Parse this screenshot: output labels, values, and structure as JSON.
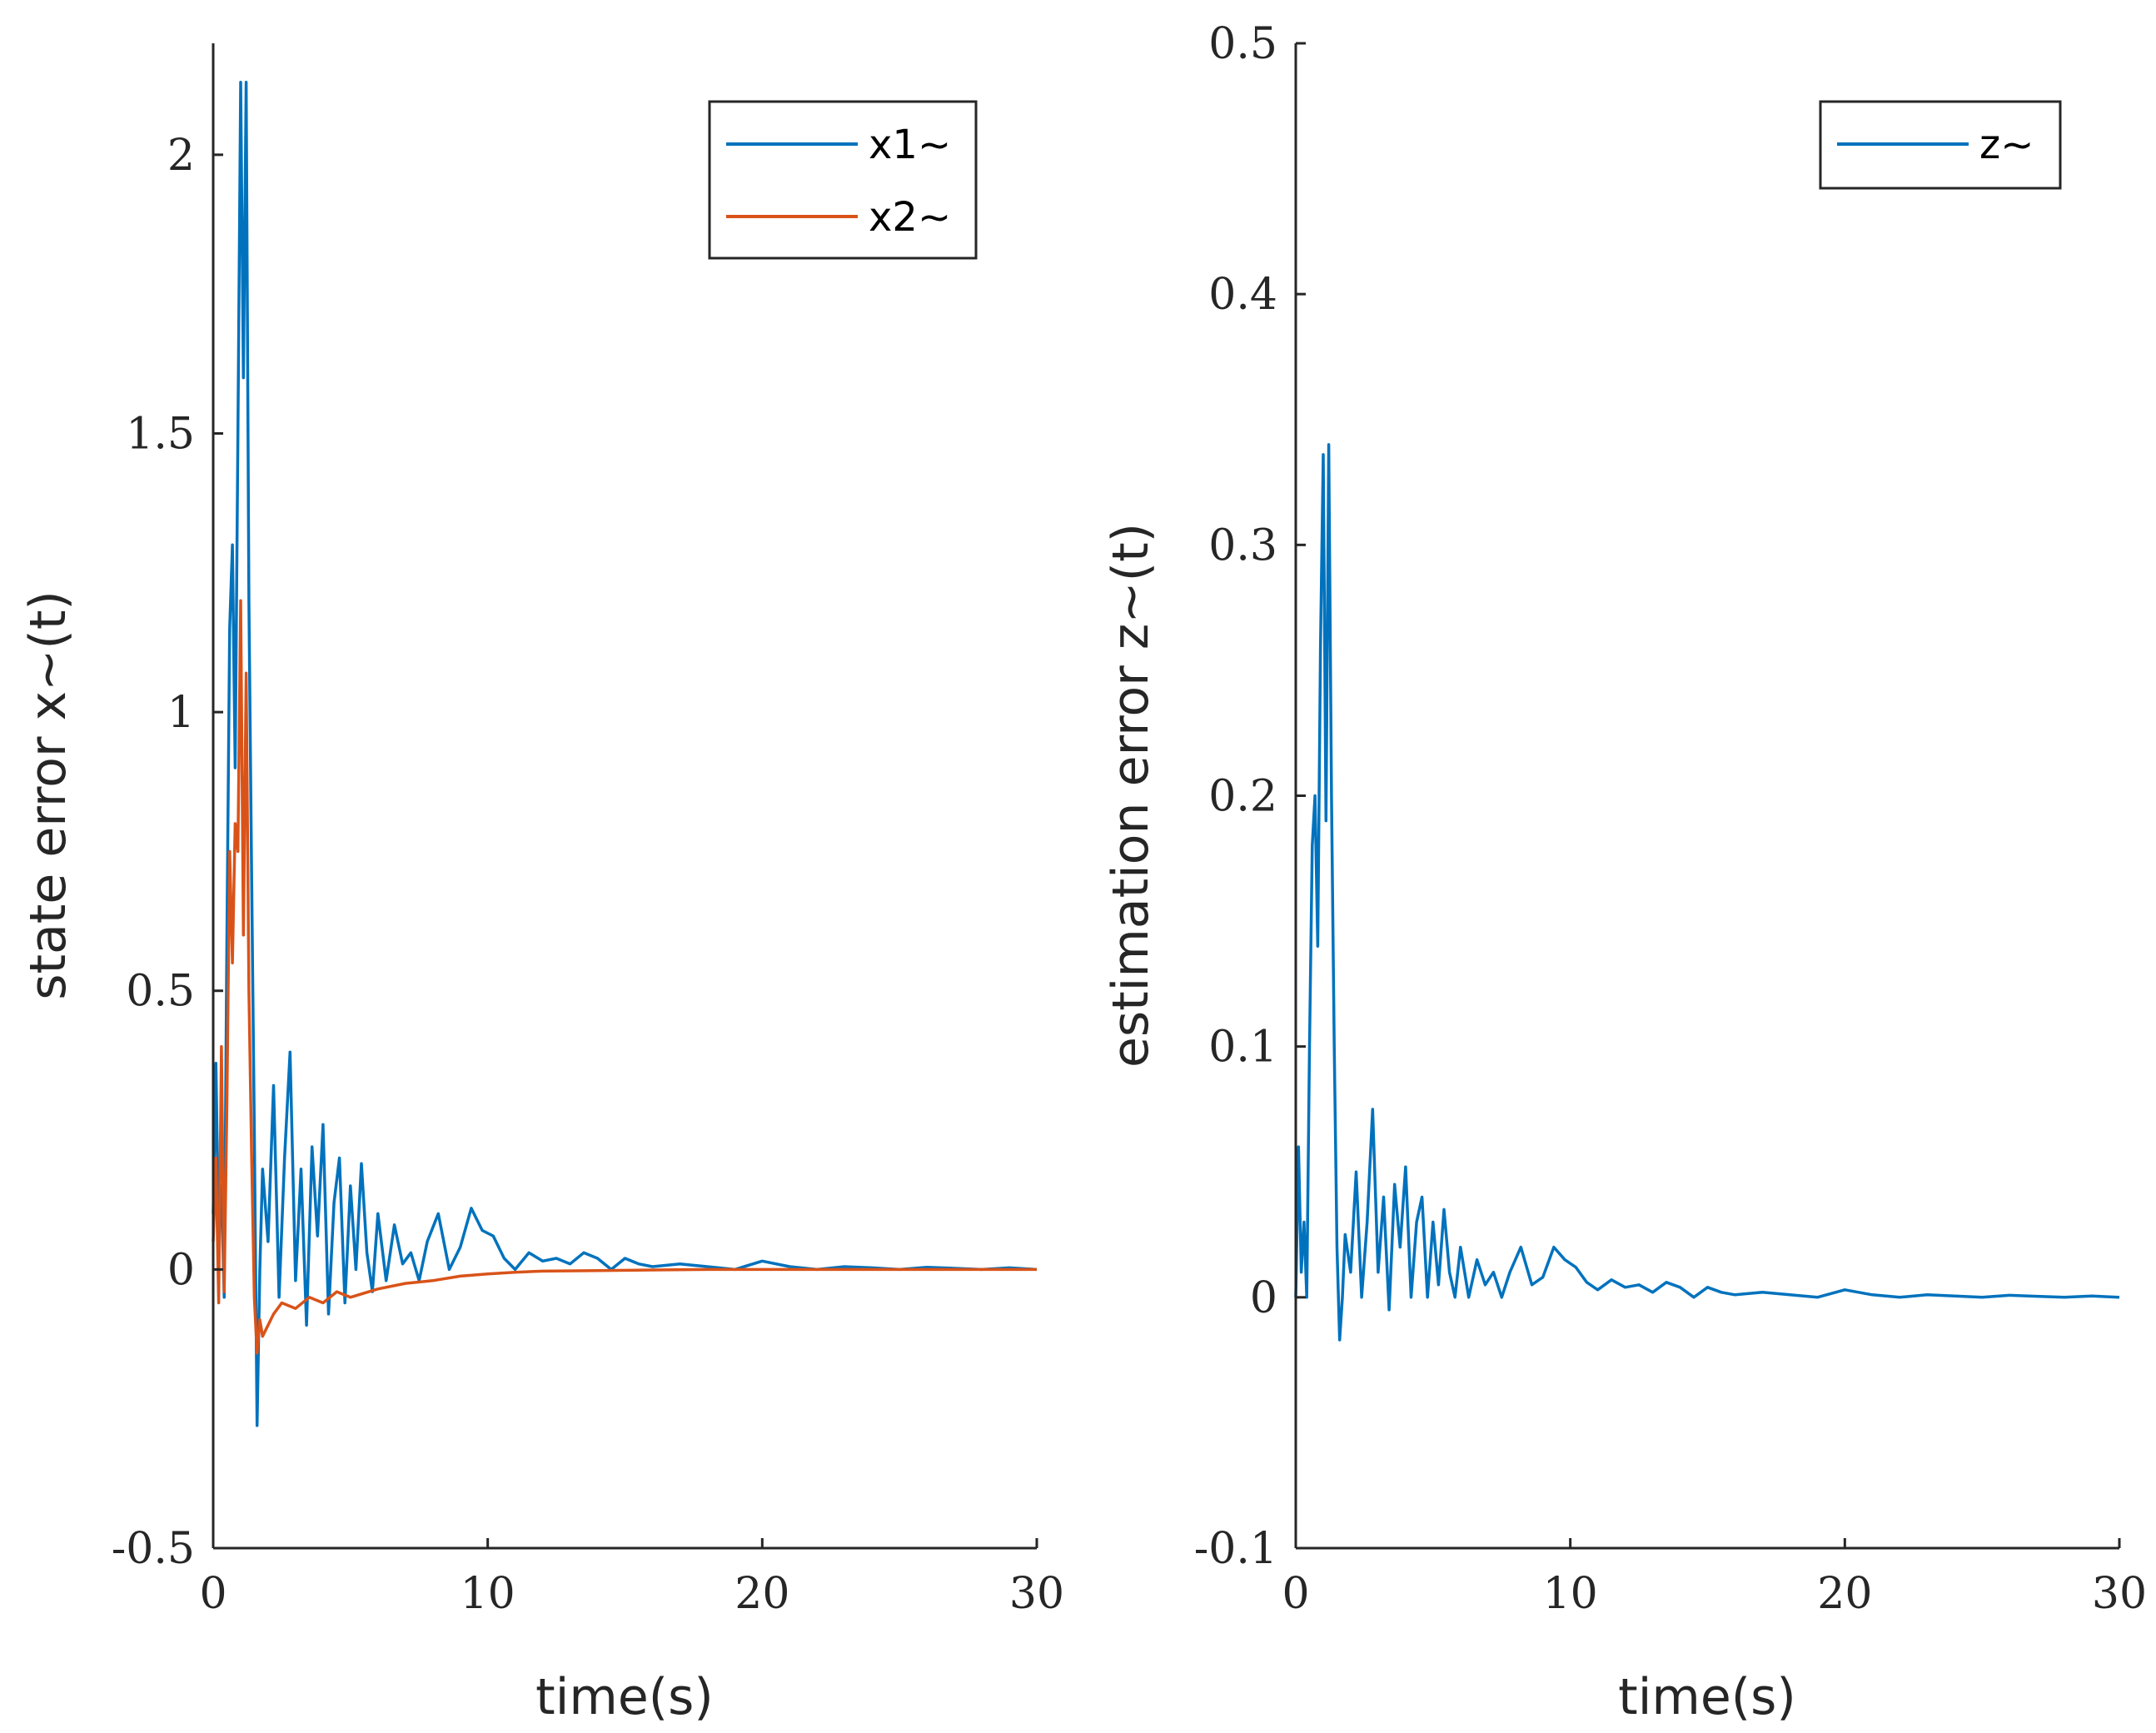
{
  "chart_data": [
    {
      "type": "line",
      "id": "left",
      "title": "",
      "xlabel": "time(s)",
      "ylabel": "state error x~(t)",
      "xlim": [
        0,
        30
      ],
      "ylim": [
        -0.5,
        2.2
      ],
      "xticks": [
        0,
        10,
        20,
        30
      ],
      "xtick_labels": [
        "0",
        "10",
        "20",
        "30"
      ],
      "yticks": [
        -0.5,
        0,
        0.5,
        1,
        1.5,
        2
      ],
      "ytick_labels": [
        "-0.5",
        "0",
        "0.5",
        "1",
        "1.5",
        "2"
      ],
      "grid": false,
      "legend_position": "top-right",
      "series": [
        {
          "name": "x1~",
          "color": "#0072BD",
          "x": [
            0,
            0.1,
            0.2,
            0.3,
            0.4,
            0.5,
            0.6,
            0.7,
            0.8,
            0.9,
            1.0,
            1.1,
            1.2,
            1.3,
            1.4,
            1.5,
            1.6,
            1.7,
            1.8,
            2.0,
            2.2,
            2.4,
            2.6,
            2.8,
            3.0,
            3.2,
            3.4,
            3.6,
            3.8,
            4.0,
            4.2,
            4.4,
            4.6,
            4.8,
            5.0,
            5.2,
            5.4,
            5.6,
            5.8,
            6.0,
            6.3,
            6.6,
            6.9,
            7.2,
            7.5,
            7.8,
            8.2,
            8.6,
            9.0,
            9.4,
            9.8,
            10.2,
            10.6,
            11.0,
            11.5,
            12.0,
            12.5,
            13.0,
            13.5,
            14.0,
            14.5,
            15.0,
            15.5,
            16.0,
            17,
            18,
            19,
            20,
            21,
            22,
            23,
            24,
            25,
            26,
            27,
            28,
            29,
            30
          ],
          "y": [
            0.1,
            0.37,
            0.05,
            0.15,
            -0.05,
            0.6,
            1.15,
            1.3,
            0.9,
            1.5,
            2.13,
            1.6,
            2.13,
            1.2,
            0.7,
            0.25,
            -0.28,
            0.0,
            0.18,
            0.05,
            0.33,
            -0.05,
            0.2,
            0.39,
            -0.02,
            0.18,
            -0.1,
            0.22,
            0.06,
            0.26,
            -0.08,
            0.12,
            0.2,
            -0.06,
            0.15,
            0.0,
            0.19,
            0.03,
            -0.04,
            0.1,
            -0.02,
            0.08,
            0.01,
            0.03,
            -0.02,
            0.05,
            0.1,
            0.0,
            0.04,
            0.11,
            0.07,
            0.06,
            0.02,
            0.0,
            0.03,
            0.015,
            0.02,
            0.01,
            0.03,
            0.02,
            0.0,
            0.02,
            0.01,
            0.005,
            0.01,
            0.005,
            0.0,
            0.015,
            0.005,
            0.0,
            0.005,
            0.003,
            0.0,
            0.004,
            0.002,
            0.0,
            0.003,
            0.0
          ]
        },
        {
          "name": "x2~",
          "color": "#D95319",
          "x": [
            0,
            0.1,
            0.2,
            0.3,
            0.4,
            0.5,
            0.6,
            0.7,
            0.8,
            0.9,
            1.0,
            1.1,
            1.2,
            1.3,
            1.4,
            1.5,
            1.6,
            1.7,
            1.8,
            2.0,
            2.2,
            2.5,
            3.0,
            3.5,
            4.0,
            4.5,
            5.0,
            6.0,
            7.0,
            8.0,
            9.0,
            10.0,
            11.0,
            12.0,
            14.0,
            16.0,
            18.0,
            20.0,
            25.0,
            30.0
          ],
          "y": [
            0.05,
            0.2,
            -0.06,
            0.4,
            -0.04,
            0.3,
            0.75,
            0.55,
            0.8,
            0.75,
            1.2,
            0.6,
            1.07,
            0.5,
            0.2,
            -0.05,
            -0.15,
            -0.09,
            -0.12,
            -0.1,
            -0.08,
            -0.06,
            -0.07,
            -0.05,
            -0.06,
            -0.04,
            -0.05,
            -0.035,
            -0.025,
            -0.02,
            -0.012,
            -0.008,
            -0.005,
            -0.003,
            -0.002,
            -0.001,
            0.0,
            0.0,
            0.0,
            0.0
          ]
        }
      ]
    },
    {
      "type": "line",
      "id": "right",
      "title": "",
      "xlabel": "time(s)",
      "ylabel": "estimation error z~(t)",
      "xlim": [
        0,
        30
      ],
      "ylim": [
        -0.1,
        0.5
      ],
      "xticks": [
        0,
        10,
        20,
        30
      ],
      "xtick_labels": [
        "0",
        "10",
        "20",
        "30"
      ],
      "yticks": [
        -0.1,
        0,
        0.1,
        0.2,
        0.3,
        0.4,
        0.5
      ],
      "ytick_labels": [
        "-0.1",
        "0",
        "0.1",
        "0.2",
        "0.3",
        "0.4",
        "0.5"
      ],
      "grid": false,
      "legend_position": "top-right",
      "series": [
        {
          "name": "z~",
          "color": "#0072BD",
          "x": [
            0,
            0.1,
            0.2,
            0.3,
            0.4,
            0.5,
            0.6,
            0.7,
            0.8,
            0.9,
            1.0,
            1.1,
            1.2,
            1.3,
            1.4,
            1.5,
            1.6,
            1.7,
            1.8,
            2.0,
            2.2,
            2.4,
            2.6,
            2.8,
            3.0,
            3.2,
            3.4,
            3.6,
            3.8,
            4.0,
            4.2,
            4.4,
            4.6,
            4.8,
            5.0,
            5.2,
            5.4,
            5.6,
            5.8,
            6.0,
            6.3,
            6.6,
            6.9,
            7.2,
            7.5,
            7.8,
            8.2,
            8.6,
            9.0,
            9.4,
            9.8,
            10.2,
            10.6,
            11.0,
            11.5,
            12.0,
            12.5,
            13.0,
            13.5,
            14.0,
            14.5,
            15.0,
            15.5,
            16.0,
            17,
            18,
            19,
            20,
            21,
            22,
            23,
            24,
            25,
            26,
            27,
            28,
            29,
            30
          ],
          "y": [
            0.0,
            0.06,
            0.01,
            0.03,
            0.0,
            0.1,
            0.18,
            0.2,
            0.14,
            0.26,
            0.336,
            0.19,
            0.34,
            0.2,
            0.1,
            0.02,
            -0.017,
            0.0,
            0.025,
            0.01,
            0.05,
            0.0,
            0.03,
            0.075,
            0.01,
            0.04,
            -0.005,
            0.045,
            0.02,
            0.052,
            0.0,
            0.03,
            0.04,
            0.0,
            0.03,
            0.005,
            0.035,
            0.01,
            0.0,
            0.02,
            0.0,
            0.015,
            0.005,
            0.01,
            0.0,
            0.01,
            0.02,
            0.005,
            0.008,
            0.02,
            0.015,
            0.012,
            0.006,
            0.003,
            0.007,
            0.004,
            0.005,
            0.002,
            0.006,
            0.004,
            0.0,
            0.004,
            0.002,
            0.001,
            0.002,
            0.001,
            0.0,
            0.003,
            0.001,
            0.0,
            0.001,
            0.0005,
            0.0,
            0.0008,
            0.0004,
            0.0,
            0.0005,
            0.0
          ]
        }
      ]
    }
  ]
}
